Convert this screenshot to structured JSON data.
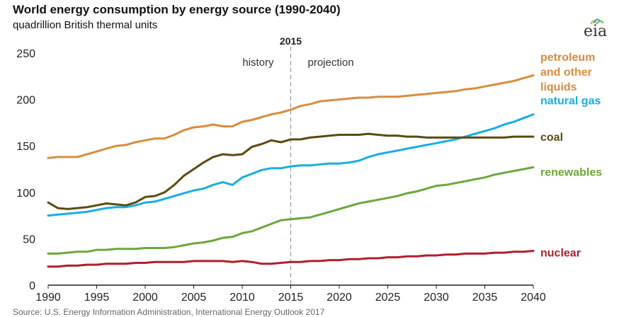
{
  "header": {
    "title": "World energy consumption by energy source (1990-2040)",
    "subtitle": "quadrillion British thermal units",
    "logo_text": "eia"
  },
  "footer": {
    "source": "Source: U.S. Energy Information Administration, International Energy Outlook 2017"
  },
  "colors": {
    "petroleum": "#d98c3e",
    "natural_gas": "#17aee3",
    "coal": "#5c4a12",
    "renewables": "#6aa83c",
    "nuclear": "#b31d2d",
    "axis": "#222222",
    "divider": "#999999"
  },
  "chart_data": {
    "type": "line",
    "title": "World energy consumption by energy source (1990-2040)",
    "subtitle": "quadrillion British thermal units",
    "xlim": [
      1990,
      2040
    ],
    "ylim": [
      0,
      250
    ],
    "x_ticks": [
      1990,
      1995,
      2000,
      2005,
      2010,
      2015,
      2020,
      2025,
      2030,
      2035,
      2040
    ],
    "y_ticks": [
      0,
      50,
      100,
      150,
      200,
      250
    ],
    "grid": false,
    "divider": {
      "x": 2015,
      "label": "2015",
      "left_label": "history",
      "right_label": "projection"
    },
    "x": [
      1990,
      1991,
      1992,
      1993,
      1994,
      1995,
      1996,
      1997,
      1998,
      1999,
      2000,
      2001,
      2002,
      2003,
      2004,
      2005,
      2006,
      2007,
      2008,
      2009,
      2010,
      2011,
      2012,
      2013,
      2014,
      2015,
      2016,
      2017,
      2018,
      2019,
      2020,
      2021,
      2022,
      2023,
      2024,
      2025,
      2026,
      2027,
      2028,
      2029,
      2030,
      2031,
      2032,
      2033,
      2034,
      2035,
      2036,
      2037,
      2038,
      2039,
      2040
    ],
    "series": [
      {
        "name": "petroleum and other liquids",
        "key": "petroleum",
        "label_lines": [
          "petroleum",
          "and other",
          "liquids"
        ],
        "values": [
          137,
          138,
          138,
          138,
          141,
          144,
          147,
          150,
          151,
          154,
          156,
          158,
          158,
          162,
          167,
          170,
          171,
          173,
          171,
          171,
          176,
          178,
          181,
          184,
          186,
          189,
          193,
          195,
          198,
          199,
          200,
          201,
          202,
          202,
          203,
          203,
          203,
          204,
          205,
          206,
          207,
          208,
          209,
          211,
          212,
          214,
          216,
          218,
          220,
          223,
          226
        ]
      },
      {
        "name": "natural gas",
        "key": "natural_gas",
        "label_lines": [
          "natural gas"
        ],
        "values": [
          75,
          76,
          77,
          78,
          79,
          81,
          83,
          84,
          84,
          86,
          89,
          90,
          93,
          96,
          99,
          102,
          104,
          108,
          111,
          108,
          116,
          120,
          124,
          126,
          126,
          128,
          129,
          129,
          130,
          131,
          131,
          132,
          134,
          138,
          141,
          143,
          145,
          147,
          149,
          151,
          153,
          155,
          157,
          160,
          163,
          166,
          169,
          173,
          176,
          180,
          184
        ]
      },
      {
        "name": "coal",
        "key": "coal",
        "label_lines": [
          "coal"
        ],
        "values": [
          89,
          83,
          82,
          83,
          84,
          86,
          88,
          87,
          86,
          89,
          95,
          96,
          100,
          108,
          118,
          125,
          132,
          138,
          141,
          140,
          141,
          149,
          152,
          156,
          154,
          157,
          157,
          159,
          160,
          161,
          162,
          162,
          162,
          163,
          162,
          161,
          161,
          160,
          160,
          159,
          159,
          159,
          159,
          159,
          159,
          159,
          159,
          159,
          160,
          160,
          160
        ]
      },
      {
        "name": "renewables",
        "key": "renewables",
        "label_lines": [
          "renewables"
        ],
        "values": [
          34,
          34,
          35,
          36,
          36,
          38,
          38,
          39,
          39,
          39,
          40,
          40,
          40,
          41,
          43,
          45,
          46,
          48,
          51,
          52,
          56,
          58,
          62,
          66,
          70,
          71,
          72,
          73,
          76,
          79,
          82,
          85,
          88,
          90,
          92,
          94,
          96,
          99,
          101,
          104,
          107,
          108,
          110,
          112,
          114,
          116,
          119,
          121,
          123,
          125,
          127
        ]
      },
      {
        "name": "nuclear",
        "key": "nuclear",
        "label_lines": [
          "nuclear"
        ],
        "values": [
          20,
          20,
          21,
          21,
          22,
          22,
          23,
          23,
          23,
          24,
          24,
          25,
          25,
          25,
          25,
          26,
          26,
          26,
          26,
          25,
          26,
          25,
          23,
          23,
          24,
          25,
          25,
          26,
          26,
          27,
          27,
          28,
          28,
          29,
          29,
          30,
          30,
          31,
          31,
          32,
          32,
          33,
          33,
          34,
          34,
          34,
          35,
          35,
          36,
          36,
          37
        ]
      }
    ]
  }
}
